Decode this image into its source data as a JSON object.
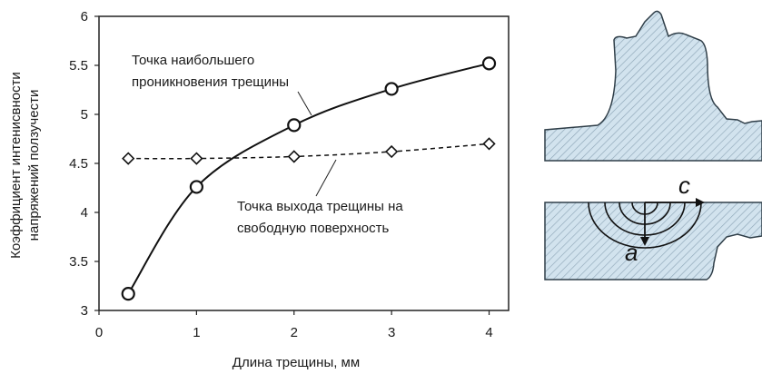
{
  "chart_data": {
    "type": "line",
    "xlabel": "Длина трещины, мм",
    "ylabel_lines": [
      "Коэффициент интенисвности",
      "напряжений ползучести"
    ],
    "xlim": [
      0,
      4.2
    ],
    "ylim": [
      3,
      6
    ],
    "x_ticks": [
      0,
      1,
      2,
      3,
      4
    ],
    "y_ticks": [
      3,
      3.5,
      4,
      4.5,
      5,
      5.5,
      6
    ],
    "y_tick_labels": [
      "3",
      "3.5",
      "4",
      "4.5",
      "5",
      "5.5",
      "6"
    ],
    "grid": false,
    "series": [
      {
        "annotation_lines": [
          "Точка наибольшего",
          "проникновения трещины"
        ],
        "x": [
          0.3,
          1,
          2,
          3,
          4
        ],
        "y": [
          3.17,
          4.26,
          4.89,
          5.26,
          5.52
        ],
        "line_style": "solid",
        "marker": "circle",
        "color": "#111111"
      },
      {
        "annotation_lines": [
          "Точка выхода трещины на",
          "свободную поверхность"
        ],
        "x": [
          0.3,
          1,
          2,
          3,
          4
        ],
        "y": [
          4.55,
          4.55,
          4.57,
          4.62,
          4.7
        ],
        "line_style": "dashed",
        "marker": "diamond",
        "color": "#111111"
      }
    ]
  },
  "diagram": {
    "crack_width_label": "c",
    "crack_depth_label": "a",
    "fill_color": "#d2e3ee",
    "hatch_color": "#7d97aa",
    "outline_color": "#2f3e48"
  }
}
